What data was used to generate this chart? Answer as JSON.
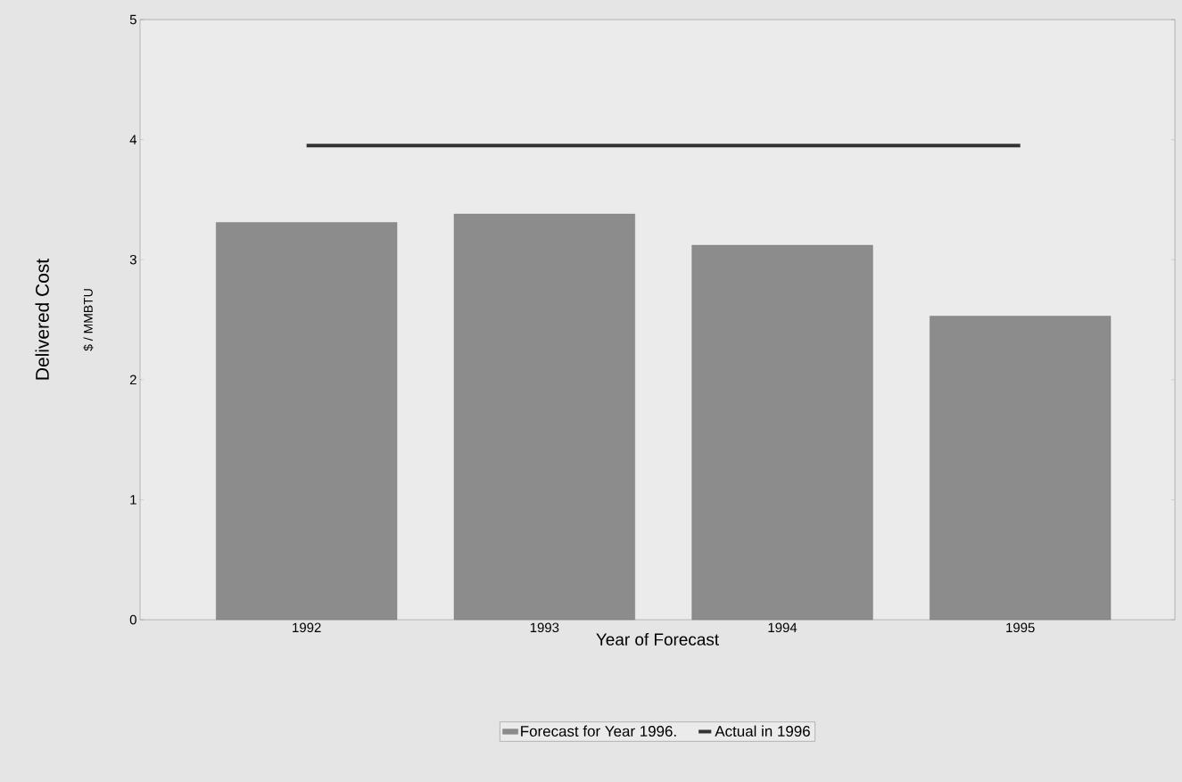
{
  "chart_data": {
    "type": "bar",
    "categories": [
      "1992",
      "1993",
      "1994",
      "1995"
    ],
    "series": [
      {
        "name": "Forecast for Year 1996.",
        "color": "#8c8c8c",
        "values": [
          3.31,
          3.38,
          3.12,
          2.53
        ]
      },
      {
        "name": "Actual in 1996",
        "type": "line",
        "color": "#333333",
        "values": [
          3.95,
          3.95,
          3.95,
          3.95
        ]
      }
    ],
    "xlabel": "Year of Forecast",
    "ylabel": "Delivered Cost",
    "annotations": [
      "$ / MMBTU"
    ],
    "ylim": [
      0,
      5
    ],
    "yticks": [
      0,
      1,
      2,
      3,
      4,
      5
    ],
    "legend": "bottom"
  }
}
